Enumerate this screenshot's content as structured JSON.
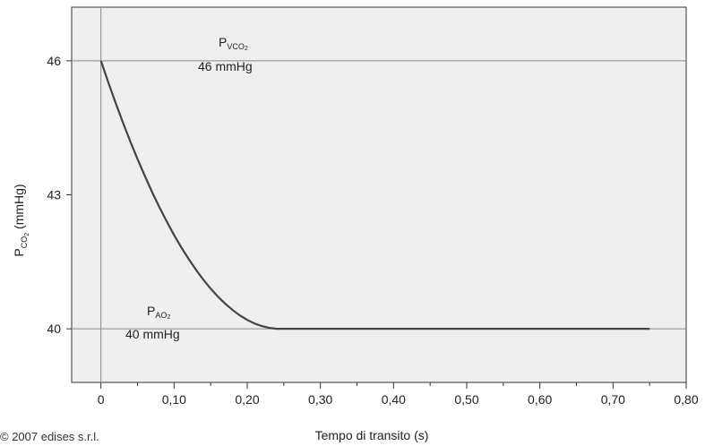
{
  "chart_data": {
    "type": "line",
    "xlabel": "Tempo di transito (s)",
    "ylabel_main": "P",
    "ylabel_sub": "CO",
    "ylabel_sub2": "2",
    "ylabel_unit": " (mmHg)",
    "xlim": [
      -0.04,
      0.8
    ],
    "ylim": [
      38.8,
      47.2
    ],
    "x_ticks": [
      0,
      0.1,
      0.2,
      0.3,
      0.4,
      0.5,
      0.6,
      0.7,
      0.8
    ],
    "x_tick_labels": [
      "0",
      "0,10",
      "0,20",
      "0,30",
      "0,40",
      "0,50",
      "0,60",
      "0,70",
      "0,80"
    ],
    "y_ticks": [
      40,
      43,
      46
    ],
    "y_tick_labels": [
      "40",
      "43",
      "46"
    ],
    "grid": "reference lines at y=40 and y=46, vertical line at x=0",
    "series": [
      {
        "x": [
          0,
          0.01,
          0.02,
          0.03,
          0.04,
          0.05,
          0.06,
          0.07,
          0.08,
          0.09,
          0.1,
          0.11,
          0.12,
          0.13,
          0.14,
          0.15,
          0.16,
          0.17,
          0.18,
          0.19,
          0.2,
          0.21,
          0.22,
          0.23,
          0.24,
          0.25,
          0.75
        ],
        "y": [
          46.0,
          45.52,
          45.06,
          44.62,
          44.2,
          43.8,
          43.42,
          43.06,
          42.72,
          42.4,
          42.1,
          41.82,
          41.56,
          41.32,
          41.1,
          40.9,
          40.72,
          40.56,
          40.42,
          40.3,
          40.2,
          40.12,
          40.06,
          40.02,
          40.0,
          40.0,
          40.0
        ]
      }
    ],
    "annotations": [
      {
        "label": "P",
        "sub": "VCO",
        "sub2": "2",
        "value": "46 mmHg"
      },
      {
        "label": "P",
        "sub": "AO",
        "sub2": "2",
        "value": "40 mmHg"
      }
    ]
  },
  "footer_note": "© 2007 edises s.r.l."
}
